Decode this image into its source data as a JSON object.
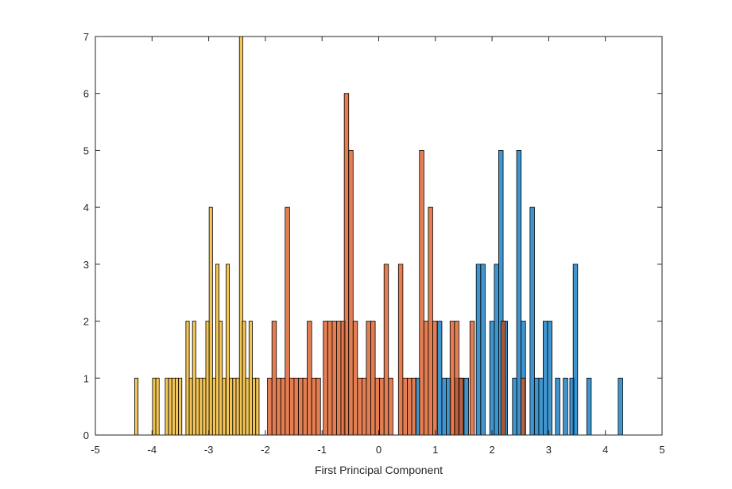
{
  "chart_data": {
    "type": "bar",
    "subtype": "overlaid-histogram",
    "title": "",
    "xlabel": "First Principal Component",
    "ylabel": "",
    "xlim": [
      -5,
      5
    ],
    "ylim": [
      0,
      7
    ],
    "xticks": [
      -5,
      -4,
      -3,
      -2,
      -1,
      0,
      1,
      2,
      3,
      4,
      5
    ],
    "yticks": [
      0,
      1,
      2,
      3,
      4,
      5,
      6,
      7
    ],
    "grid": false,
    "box": true,
    "bar_opacity": 0.75,
    "series": [
      {
        "color": "#0072BD",
        "bin_width": 0.0789,
        "points": [
          [
            0.684,
            1
          ],
          [
            1.075,
            2
          ],
          [
            1.154,
            1
          ],
          [
            1.233,
            1
          ],
          [
            1.388,
            1
          ],
          [
            1.447,
            1
          ],
          [
            1.546,
            1
          ],
          [
            1.76,
            3
          ],
          [
            1.839,
            3
          ],
          [
            1.999,
            2
          ],
          [
            2.079,
            3
          ],
          [
            2.156,
            5
          ],
          [
            2.234,
            2
          ],
          [
            2.4,
            1
          ],
          [
            2.474,
            5
          ],
          [
            2.552,
            2
          ],
          [
            2.709,
            4
          ],
          [
            2.786,
            1
          ],
          [
            2.864,
            1
          ],
          [
            2.941,
            2
          ],
          [
            3.019,
            2
          ],
          [
            3.158,
            1
          ],
          [
            3.296,
            1
          ],
          [
            3.412,
            1
          ],
          [
            3.471,
            3
          ],
          [
            3.711,
            1
          ],
          [
            4.266,
            1
          ]
        ]
      },
      {
        "color": "#D95319",
        "bin_width": 0.0781,
        "points": [
          [
            -1.923,
            1
          ],
          [
            -1.845,
            2
          ],
          [
            -1.767,
            1
          ],
          [
            -1.689,
            1
          ],
          [
            -1.612,
            4
          ],
          [
            -1.534,
            1
          ],
          [
            -1.456,
            1
          ],
          [
            -1.378,
            1
          ],
          [
            -1.3,
            1
          ],
          [
            -1.222,
            2
          ],
          [
            -1.144,
            1
          ],
          [
            -1.066,
            1
          ],
          [
            -0.939,
            2
          ],
          [
            -0.861,
            2
          ],
          [
            -0.783,
            2
          ],
          [
            -0.705,
            2
          ],
          [
            -0.627,
            2
          ],
          [
            -0.569,
            6
          ],
          [
            -0.491,
            5
          ],
          [
            -0.413,
            2
          ],
          [
            -0.335,
            1
          ],
          [
            -0.257,
            1
          ],
          [
            -0.179,
            2
          ],
          [
            -0.101,
            2
          ],
          [
            -0.023,
            1
          ],
          [
            0.055,
            1
          ],
          [
            0.133,
            3
          ],
          [
            0.211,
            1
          ],
          [
            0.387,
            3
          ],
          [
            0.465,
            1
          ],
          [
            0.543,
            1
          ],
          [
            0.621,
            1
          ],
          [
            0.758,
            5
          ],
          [
            0.836,
            2
          ],
          [
            0.914,
            4
          ],
          [
            0.992,
            2
          ],
          [
            1.298,
            2
          ],
          [
            1.376,
            2
          ],
          [
            1.455,
            1
          ],
          [
            1.649,
            2
          ],
          [
            2.196,
            2
          ],
          [
            2.546,
            1
          ]
        ]
      },
      {
        "color": "#EDB120",
        "bin_width": 0.0592,
        "points": [
          [
            -4.276,
            1
          ],
          [
            -3.962,
            1
          ],
          [
            -3.904,
            1
          ],
          [
            -3.738,
            1
          ],
          [
            -3.679,
            1
          ],
          [
            -3.621,
            1
          ],
          [
            -3.562,
            1
          ],
          [
            -3.504,
            1
          ],
          [
            -3.373,
            2
          ],
          [
            -3.315,
            1
          ],
          [
            -3.257,
            2
          ],
          [
            -3.196,
            1
          ],
          [
            -3.137,
            1
          ],
          [
            -3.079,
            1
          ],
          [
            -3.021,
            2
          ],
          [
            -2.963,
            4
          ],
          [
            -2.905,
            1
          ],
          [
            -2.847,
            3
          ],
          [
            -2.789,
            2
          ],
          [
            -2.729,
            1
          ],
          [
            -2.665,
            3
          ],
          [
            -2.606,
            1
          ],
          [
            -2.547,
            1
          ],
          [
            -2.488,
            1
          ],
          [
            -2.429,
            7
          ],
          [
            -2.377,
            2
          ],
          [
            -2.318,
            1
          ],
          [
            -2.259,
            2
          ],
          [
            -2.2,
            1
          ],
          [
            -2.141,
            1
          ]
        ]
      }
    ]
  }
}
